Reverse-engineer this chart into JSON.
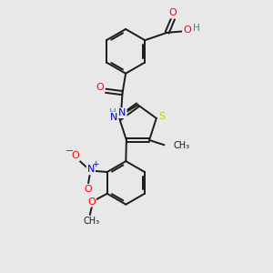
{
  "background_color": "#e8e8e8",
  "bond_color": "#1a1a1a",
  "atom_colors": {
    "O": "#ff0000",
    "N": "#0000cd",
    "S": "#cccc00",
    "H": "#2e8b8b",
    "C": "#1a1a1a"
  }
}
